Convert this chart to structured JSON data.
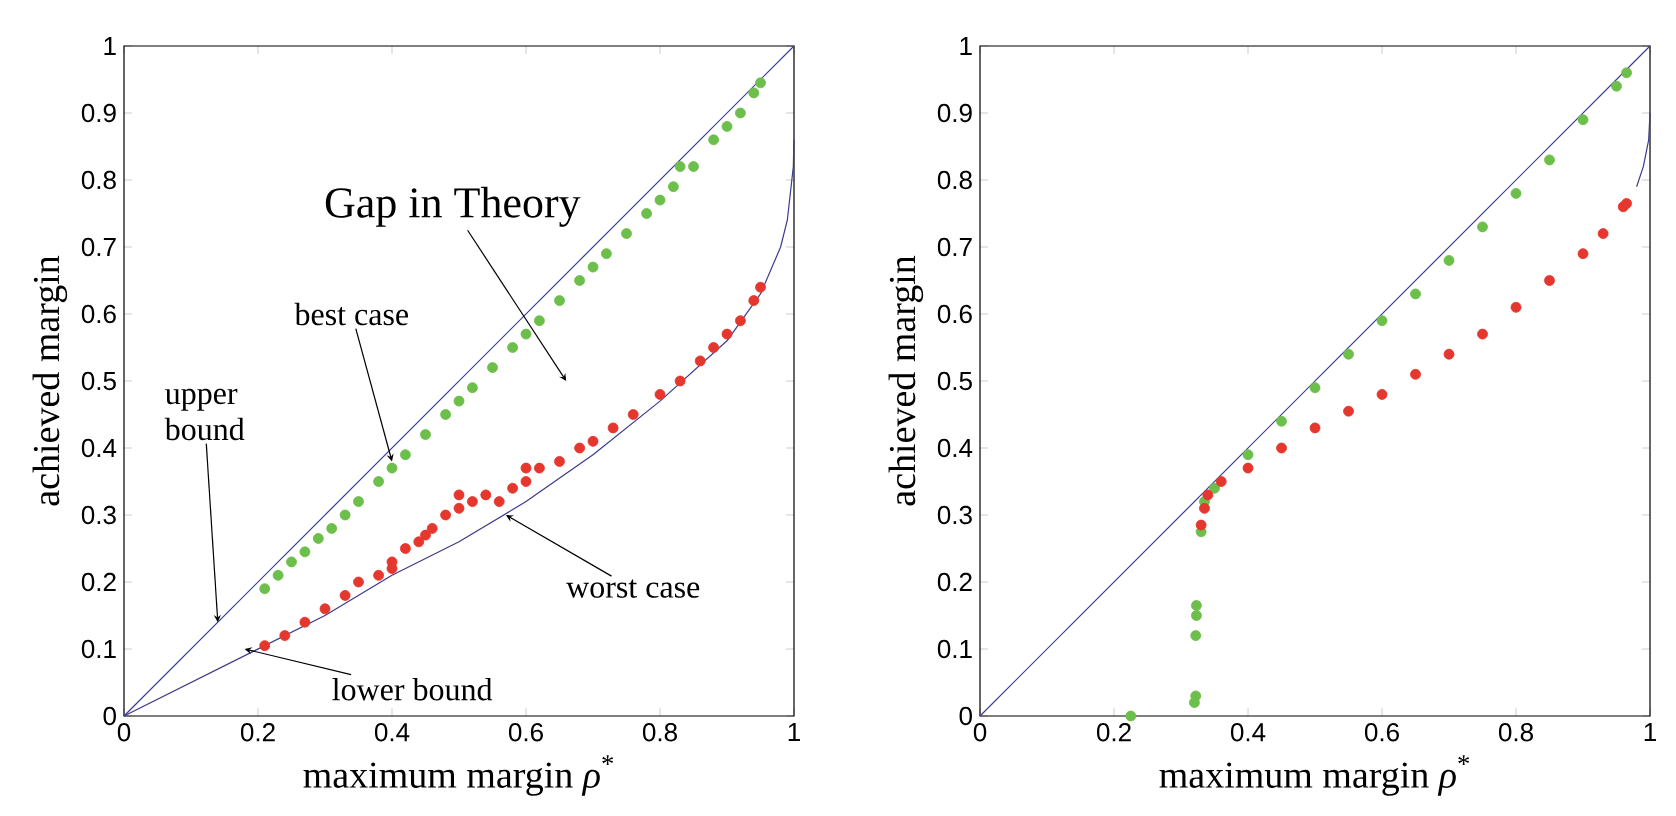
{
  "chart_data": [
    {
      "type": "scatter",
      "xlabel": "maximum margin *ρ*$^{*}$",
      "ylabel": "achieved margin",
      "xlim": [
        0,
        1
      ],
      "ylim": [
        0,
        1
      ],
      "xticks": [
        0,
        0.2,
        0.4,
        0.6,
        0.8,
        1
      ],
      "yticks": [
        0,
        0.1,
        0.2,
        0.3,
        0.4,
        0.5,
        0.6,
        0.7,
        0.8,
        0.9,
        1
      ],
      "series": [
        {
          "type": "line",
          "color": "#3b3b8f",
          "x": [
            0,
            1
          ],
          "values": [
            0,
            1
          ]
        },
        {
          "type": "line",
          "color": "#3b3b8f",
          "x": [
            0,
            0.1,
            0.2,
            0.3,
            0.4,
            0.5,
            0.6,
            0.7,
            0.8,
            0.9,
            0.95,
            0.98,
            0.99,
            0.999,
            0.9999
          ],
          "values": [
            0,
            0.05,
            0.1,
            0.15,
            0.21,
            0.26,
            0.32,
            0.39,
            0.47,
            0.56,
            0.63,
            0.7,
            0.74,
            0.82,
            0.86
          ]
        },
        {
          "color": "#6cbf4a",
          "marker": "circle",
          "x": [
            0.21,
            0.23,
            0.25,
            0.27,
            0.29,
            0.31,
            0.33,
            0.35,
            0.38,
            0.4,
            0.42,
            0.45,
            0.48,
            0.5,
            0.52,
            0.55,
            0.58,
            0.6,
            0.62,
            0.65,
            0.68,
            0.7,
            0.72,
            0.75,
            0.78,
            0.8,
            0.82,
            0.83,
            0.85,
            0.88,
            0.9,
            0.92,
            0.94,
            0.95
          ],
          "values": [
            0.19,
            0.21,
            0.23,
            0.245,
            0.265,
            0.28,
            0.3,
            0.32,
            0.35,
            0.37,
            0.39,
            0.42,
            0.45,
            0.47,
            0.49,
            0.52,
            0.55,
            0.57,
            0.59,
            0.62,
            0.65,
            0.67,
            0.69,
            0.72,
            0.75,
            0.77,
            0.79,
            0.82,
            0.82,
            0.86,
            0.88,
            0.9,
            0.93,
            0.945
          ]
        },
        {
          "color": "#e5372e",
          "marker": "circle",
          "x": [
            0.21,
            0.24,
            0.27,
            0.3,
            0.33,
            0.35,
            0.38,
            0.4,
            0.4,
            0.42,
            0.44,
            0.45,
            0.46,
            0.48,
            0.5,
            0.5,
            0.52,
            0.54,
            0.56,
            0.58,
            0.6,
            0.6,
            0.62,
            0.65,
            0.68,
            0.7,
            0.73,
            0.76,
            0.8,
            0.83,
            0.86,
            0.88,
            0.9,
            0.92,
            0.94,
            0.95
          ],
          "values": [
            0.105,
            0.12,
            0.14,
            0.16,
            0.18,
            0.2,
            0.21,
            0.23,
            0.22,
            0.25,
            0.26,
            0.27,
            0.28,
            0.3,
            0.31,
            0.33,
            0.32,
            0.33,
            0.32,
            0.34,
            0.35,
            0.37,
            0.37,
            0.38,
            0.4,
            0.41,
            0.43,
            0.45,
            0.48,
            0.5,
            0.53,
            0.55,
            0.57,
            0.59,
            0.62,
            0.64
          ]
        }
      ],
      "annotations": [
        "Gap in Theory",
        {
          "text": "best case",
          "x": 0.4,
          "y": 0.38
        },
        {
          "text": "upper bound",
          "x": 0.14,
          "y": 0.14
        },
        {
          "text": "worst case",
          "x": 0.57,
          "y": 0.3
        },
        {
          "text": "lower bound",
          "x": 0.18,
          "y": 0.1
        }
      ]
    },
    {
      "type": "scatter",
      "xlabel": "maximum margin *ρ*$^{*}$",
      "ylabel": "achieved margin",
      "xlim": [
        0,
        1
      ],
      "ylim": [
        0,
        1
      ],
      "xticks": [
        0,
        0.2,
        0.4,
        0.6,
        0.8,
        1
      ],
      "yticks": [
        0,
        0.1,
        0.2,
        0.3,
        0.4,
        0.5,
        0.6,
        0.7,
        0.8,
        0.9,
        1
      ],
      "series": [
        {
          "type": "line",
          "color": "#3b3b8f",
          "x": [
            0,
            1
          ],
          "values": [
            0,
            1
          ]
        },
        {
          "type": "line",
          "color": "#3b3b8f",
          "x": [
            0.98,
            0.99,
            0.998,
            1
          ],
          "values": [
            0.79,
            0.82,
            0.86,
            0.9
          ]
        },
        {
          "color": "#6cbf4a",
          "marker": "circle",
          "x": [
            0.225,
            0.32,
            0.322,
            0.322,
            0.323,
            0.323,
            0.33,
            0.335,
            0.35,
            0.4,
            0.45,
            0.5,
            0.55,
            0.6,
            0.65,
            0.7,
            0.75,
            0.8,
            0.85,
            0.9,
            0.95,
            0.965
          ],
          "values": [
            0.0,
            0.02,
            0.03,
            0.12,
            0.15,
            0.165,
            0.275,
            0.32,
            0.34,
            0.39,
            0.44,
            0.49,
            0.54,
            0.59,
            0.63,
            0.68,
            0.73,
            0.78,
            0.83,
            0.89,
            0.94,
            0.96
          ]
        },
        {
          "color": "#e5372e",
          "marker": "circle",
          "x": [
            0.33,
            0.335,
            0.34,
            0.36,
            0.4,
            0.45,
            0.5,
            0.55,
            0.6,
            0.65,
            0.7,
            0.75,
            0.8,
            0.85,
            0.9,
            0.93,
            0.96,
            0.965
          ],
          "values": [
            0.285,
            0.31,
            0.33,
            0.35,
            0.37,
            0.4,
            0.43,
            0.455,
            0.48,
            0.51,
            0.54,
            0.57,
            0.61,
            0.65,
            0.69,
            0.72,
            0.76,
            0.765
          ]
        }
      ]
    }
  ]
}
